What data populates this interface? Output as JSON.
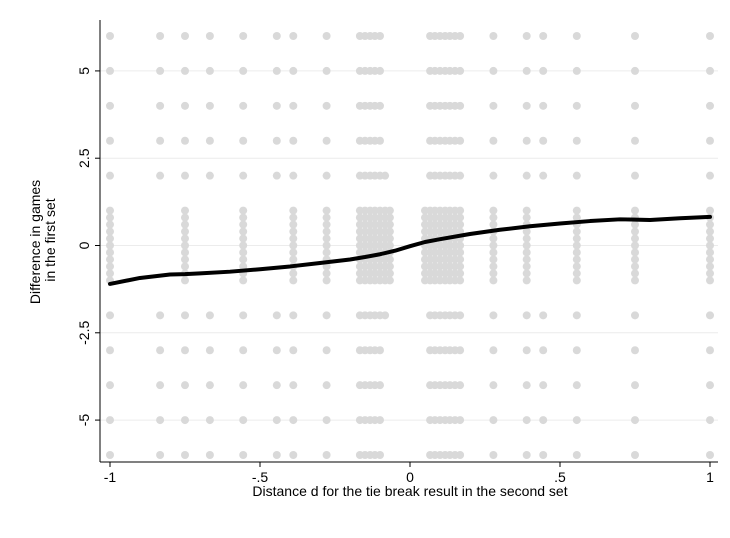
{
  "chart_data": {
    "type": "scatter",
    "xlabel": "Distance d for the tie break result in the second set",
    "ylabel_lines": [
      "Difference in games",
      "in the first set"
    ],
    "xlim": [
      -1,
      1
    ],
    "ylim": [
      -6,
      6
    ],
    "x_ticks": [
      {
        "value": -1,
        "label": "-1"
      },
      {
        "value": -0.5,
        "label": "-.5"
      },
      {
        "value": 0,
        "label": "0"
      },
      {
        "value": 0.5,
        "label": ".5"
      },
      {
        "value": 1,
        "label": "1"
      }
    ],
    "y_ticks": [
      {
        "value": 5,
        "label": "5"
      },
      {
        "value": 2.5,
        "label": "2.5"
      },
      {
        "value": 0,
        "label": "0"
      },
      {
        "value": -2.5,
        "label": "-2.5"
      },
      {
        "value": -5,
        "label": "-5"
      }
    ],
    "grid": true,
    "scatter_color": "#d9d9d9",
    "line_color": "#000000",
    "scatter_columns": [
      {
        "x": -1.0,
        "y": [
          -6,
          -5,
          -4,
          -3,
          -2,
          -1,
          -0.8,
          -0.6,
          -0.4,
          -0.2,
          0,
          0.2,
          0.4,
          0.6,
          0.8,
          1,
          2,
          3,
          4,
          5,
          6
        ]
      },
      {
        "x": -0.833,
        "y": [
          -6,
          -5,
          -4,
          -3,
          -2,
          2,
          3,
          4,
          5,
          6
        ]
      },
      {
        "x": -0.75,
        "y": [
          -6,
          -5,
          -4,
          -3,
          -2,
          -1,
          -0.8,
          -0.6,
          -0.4,
          -0.2,
          0,
          0.2,
          0.4,
          0.6,
          0.8,
          1,
          2,
          3,
          4,
          5,
          6
        ]
      },
      {
        "x": -0.667,
        "y": [
          -6,
          -5,
          -4,
          -3,
          -2,
          2,
          3,
          4,
          5,
          6
        ]
      },
      {
        "x": -0.556,
        "y": [
          -6,
          -5,
          -4,
          -3,
          -2,
          -1,
          -0.8,
          -0.6,
          -0.4,
          -0.2,
          0,
          0.2,
          0.4,
          0.6,
          0.8,
          1,
          2,
          3,
          4,
          5,
          6
        ]
      },
      {
        "x": -0.444,
        "y": [
          -6,
          -5,
          -4,
          -3,
          -2,
          2,
          3,
          4,
          5,
          6
        ]
      },
      {
        "x": -0.389,
        "y": [
          -6,
          -5,
          -4,
          -3,
          -2,
          -1,
          -0.8,
          -0.6,
          -0.4,
          -0.2,
          0,
          0.2,
          0.4,
          0.6,
          0.8,
          1,
          2,
          3,
          4,
          5,
          6
        ]
      },
      {
        "x": -0.278,
        "y": [
          -6,
          -5,
          -4,
          -3,
          -2,
          -1,
          -0.8,
          -0.6,
          -0.4,
          -0.2,
          0,
          0.2,
          0.4,
          0.6,
          0.8,
          1,
          2,
          3,
          4,
          5,
          6
        ]
      },
      {
        "x": -0.167,
        "y": [
          -6,
          -5,
          -4,
          -3,
          -2,
          -1,
          -0.8,
          -0.6,
          -0.4,
          -0.2,
          0,
          0.2,
          0.4,
          0.6,
          0.8,
          1,
          2,
          3,
          4,
          5,
          6
        ]
      },
      {
        "x": -0.15,
        "y": [
          -6,
          -5,
          -4,
          -3,
          -2,
          -1,
          -0.8,
          -0.6,
          -0.4,
          -0.2,
          0,
          0.2,
          0.4,
          0.6,
          0.8,
          1,
          2,
          3,
          4,
          5,
          6
        ]
      },
      {
        "x": -0.133,
        "y": [
          -6,
          -5,
          -4,
          -3,
          -2,
          -1,
          -0.8,
          -0.6,
          -0.4,
          -0.2,
          0,
          0.2,
          0.4,
          0.6,
          0.8,
          1,
          2,
          3,
          4,
          5,
          6
        ]
      },
      {
        "x": -0.117,
        "y": [
          -6,
          -5,
          -4,
          -3,
          -2,
          -1,
          -0.8,
          -0.6,
          -0.4,
          -0.2,
          0,
          0.2,
          0.4,
          0.6,
          0.8,
          1,
          2,
          3,
          4,
          5,
          6
        ]
      },
      {
        "x": -0.1,
        "y": [
          -6,
          -5,
          -4,
          -3,
          -2,
          -1,
          -0.8,
          -0.6,
          -0.4,
          -0.2,
          0,
          0.2,
          0.4,
          0.6,
          0.8,
          1,
          2,
          3,
          4,
          5,
          6
        ]
      },
      {
        "x": -0.083,
        "y": [
          -2,
          -1,
          -0.8,
          -0.6,
          -0.4,
          -0.2,
          0,
          0.2,
          0.4,
          0.6,
          0.8,
          1,
          2
        ]
      },
      {
        "x": -0.067,
        "y": [
          -1,
          -0.8,
          -0.6,
          -0.4,
          -0.2,
          0,
          0.2,
          0.4,
          0.6,
          0.8,
          1
        ]
      },
      {
        "x": 0.05,
        "y": [
          -1,
          -0.8,
          -0.6,
          -0.4,
          -0.2,
          0,
          0.2,
          0.4,
          0.6,
          0.8,
          1
        ]
      },
      {
        "x": 0.067,
        "y": [
          -6,
          -5,
          -4,
          -3,
          -2,
          -1,
          -0.8,
          -0.6,
          -0.4,
          -0.2,
          0,
          0.2,
          0.4,
          0.6,
          0.8,
          1,
          2,
          3,
          4,
          5,
          6
        ]
      },
      {
        "x": 0.083,
        "y": [
          -6,
          -5,
          -4,
          -3,
          -2,
          -1,
          -0.8,
          -0.6,
          -0.4,
          -0.2,
          0,
          0.2,
          0.4,
          0.6,
          0.8,
          1,
          2,
          3,
          4,
          5,
          6
        ]
      },
      {
        "x": 0.1,
        "y": [
          -6,
          -5,
          -4,
          -3,
          -2,
          -1,
          -0.8,
          -0.6,
          -0.4,
          -0.2,
          0,
          0.2,
          0.4,
          0.6,
          0.8,
          1,
          2,
          3,
          4,
          5,
          6
        ]
      },
      {
        "x": 0.117,
        "y": [
          -6,
          -5,
          -4,
          -3,
          -2,
          -1,
          -0.8,
          -0.6,
          -0.4,
          -0.2,
          0,
          0.2,
          0.4,
          0.6,
          0.8,
          1,
          2,
          3,
          4,
          5,
          6
        ]
      },
      {
        "x": 0.133,
        "y": [
          -6,
          -5,
          -4,
          -3,
          -2,
          -1,
          -0.8,
          -0.6,
          -0.4,
          -0.2,
          0,
          0.2,
          0.4,
          0.6,
          0.8,
          1,
          2,
          3,
          4,
          5,
          6
        ]
      },
      {
        "x": 0.15,
        "y": [
          -6,
          -5,
          -4,
          -3,
          -2,
          -1,
          -0.8,
          -0.6,
          -0.4,
          -0.2,
          0,
          0.2,
          0.4,
          0.6,
          0.8,
          1,
          2,
          3,
          4,
          5,
          6
        ]
      },
      {
        "x": 0.167,
        "y": [
          -6,
          -5,
          -4,
          -3,
          -2,
          -1,
          -0.8,
          -0.6,
          -0.4,
          -0.2,
          0,
          0.2,
          0.4,
          0.6,
          0.8,
          1,
          2,
          3,
          4,
          5,
          6
        ]
      },
      {
        "x": 0.278,
        "y": [
          -6,
          -5,
          -4,
          -3,
          -2,
          -1,
          -0.8,
          -0.6,
          -0.4,
          -0.2,
          0,
          0.2,
          0.4,
          0.6,
          0.8,
          1,
          2,
          3,
          4,
          5,
          6
        ]
      },
      {
        "x": 0.389,
        "y": [
          -6,
          -5,
          -4,
          -3,
          -2,
          -1,
          -0.8,
          -0.6,
          -0.4,
          -0.2,
          0,
          0.2,
          0.4,
          0.6,
          0.8,
          1,
          2,
          3,
          4,
          5,
          6
        ]
      },
      {
        "x": 0.444,
        "y": [
          -6,
          -5,
          -4,
          -3,
          -2,
          2,
          3,
          4,
          5,
          6
        ]
      },
      {
        "x": 0.556,
        "y": [
          -6,
          -5,
          -4,
          -3,
          -2,
          -1,
          -0.8,
          -0.6,
          -0.4,
          -0.2,
          0,
          0.2,
          0.4,
          0.6,
          0.8,
          1,
          2,
          3,
          4,
          5,
          6
        ]
      },
      {
        "x": 0.75,
        "y": [
          -6,
          -5,
          -4,
          -3,
          -2,
          -1,
          -0.8,
          -0.6,
          -0.4,
          -0.2,
          0,
          0.2,
          0.4,
          0.6,
          0.8,
          1,
          2,
          3,
          4,
          5,
          6
        ]
      },
      {
        "x": 1.0,
        "y": [
          -6,
          -5,
          -4,
          -3,
          -2,
          -1,
          -0.8,
          -0.6,
          -0.4,
          -0.2,
          0,
          0.2,
          0.4,
          0.6,
          0.8,
          1,
          2,
          3,
          4,
          5,
          6
        ]
      }
    ],
    "fit_line": {
      "x": [
        -1.0,
        -0.9,
        -0.8,
        -0.75,
        -0.7,
        -0.6,
        -0.5,
        -0.4,
        -0.3,
        -0.2,
        -0.15,
        -0.1,
        -0.05,
        0.0,
        0.05,
        0.1,
        0.2,
        0.3,
        0.4,
        0.5,
        0.6,
        0.7,
        0.8,
        0.9,
        1.0
      ],
      "y": [
        -1.1,
        -0.93,
        -0.83,
        -0.82,
        -0.8,
        -0.75,
        -0.68,
        -0.6,
        -0.5,
        -0.4,
        -0.33,
        -0.25,
        -0.15,
        -0.02,
        0.1,
        0.18,
        0.33,
        0.45,
        0.55,
        0.63,
        0.7,
        0.75,
        0.73,
        0.78,
        0.82
      ]
    }
  }
}
